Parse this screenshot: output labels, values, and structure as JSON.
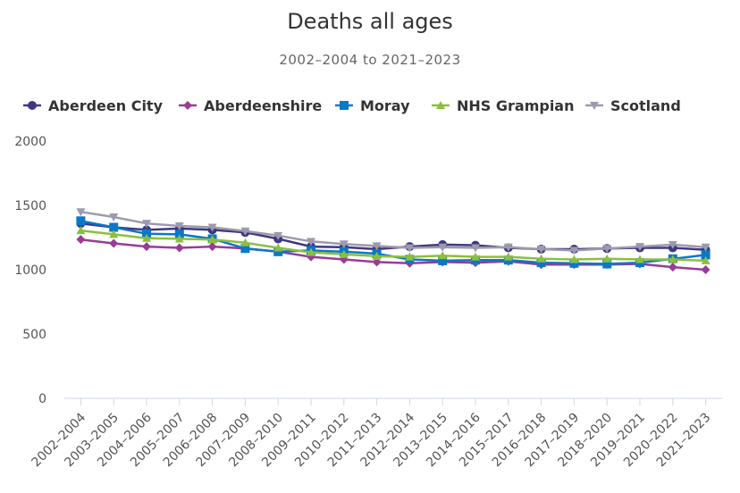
{
  "chart_data": {
    "type": "line",
    "title": "Deaths all ages",
    "subtitle": "2002–2004 to 2021–2023",
    "xlabel": "",
    "ylabel": "",
    "ylim": [
      0,
      2000
    ],
    "yticks": [
      0,
      500,
      1000,
      1500,
      2000
    ],
    "legend_position": "top",
    "categories": [
      "2002–2004",
      "2003–2005",
      "2004–2006",
      "2005–2007",
      "2006–2008",
      "2007–2009",
      "2008–2010",
      "2009–2011",
      "2010–2012",
      "2011–2013",
      "2012–2014",
      "2013–2015",
      "2014–2016",
      "2015–2017",
      "2016–2018",
      "2017–2019",
      "2018–2020",
      "2019–2021",
      "2020–2022",
      "2021–2023"
    ],
    "series": [
      {
        "name": "Aberdeen City",
        "color": "#3f3782",
        "marker": "circle",
        "values": [
          1360,
          1330,
          1310,
          1320,
          1310,
          1290,
          1240,
          1180,
          1175,
          1160,
          1180,
          1195,
          1190,
          1170,
          1160,
          1160,
          1165,
          1170,
          1170,
          1155
        ]
      },
      {
        "name": "Aberdeenshire",
        "color": "#983c95",
        "marker": "diamond",
        "values": [
          1235,
          1205,
          1180,
          1170,
          1180,
          1165,
          1140,
          1100,
          1080,
          1060,
          1050,
          1060,
          1055,
          1065,
          1040,
          1040,
          1040,
          1045,
          1020,
          1000
        ]
      },
      {
        "name": "Moray",
        "color": "#0a78c8",
        "marker": "square",
        "values": [
          1380,
          1330,
          1280,
          1275,
          1240,
          1165,
          1140,
          1150,
          1140,
          1125,
          1080,
          1070,
          1075,
          1075,
          1055,
          1050,
          1045,
          1055,
          1085,
          1115
        ]
      },
      {
        "name": "NHS Grampian",
        "color": "#8cbf3f",
        "marker": "triangle-up",
        "values": [
          1305,
          1275,
          1245,
          1240,
          1235,
          1210,
          1170,
          1135,
          1120,
          1105,
          1100,
          1110,
          1100,
          1100,
          1085,
          1080,
          1085,
          1080,
          1080,
          1070
        ]
      },
      {
        "name": "Scotland",
        "color": "#9c9aad",
        "marker": "triangle-down",
        "values": [
          1450,
          1410,
          1360,
          1340,
          1330,
          1300,
          1265,
          1220,
          1200,
          1185,
          1170,
          1175,
          1170,
          1175,
          1160,
          1150,
          1165,
          1180,
          1195,
          1175
        ]
      }
    ]
  }
}
